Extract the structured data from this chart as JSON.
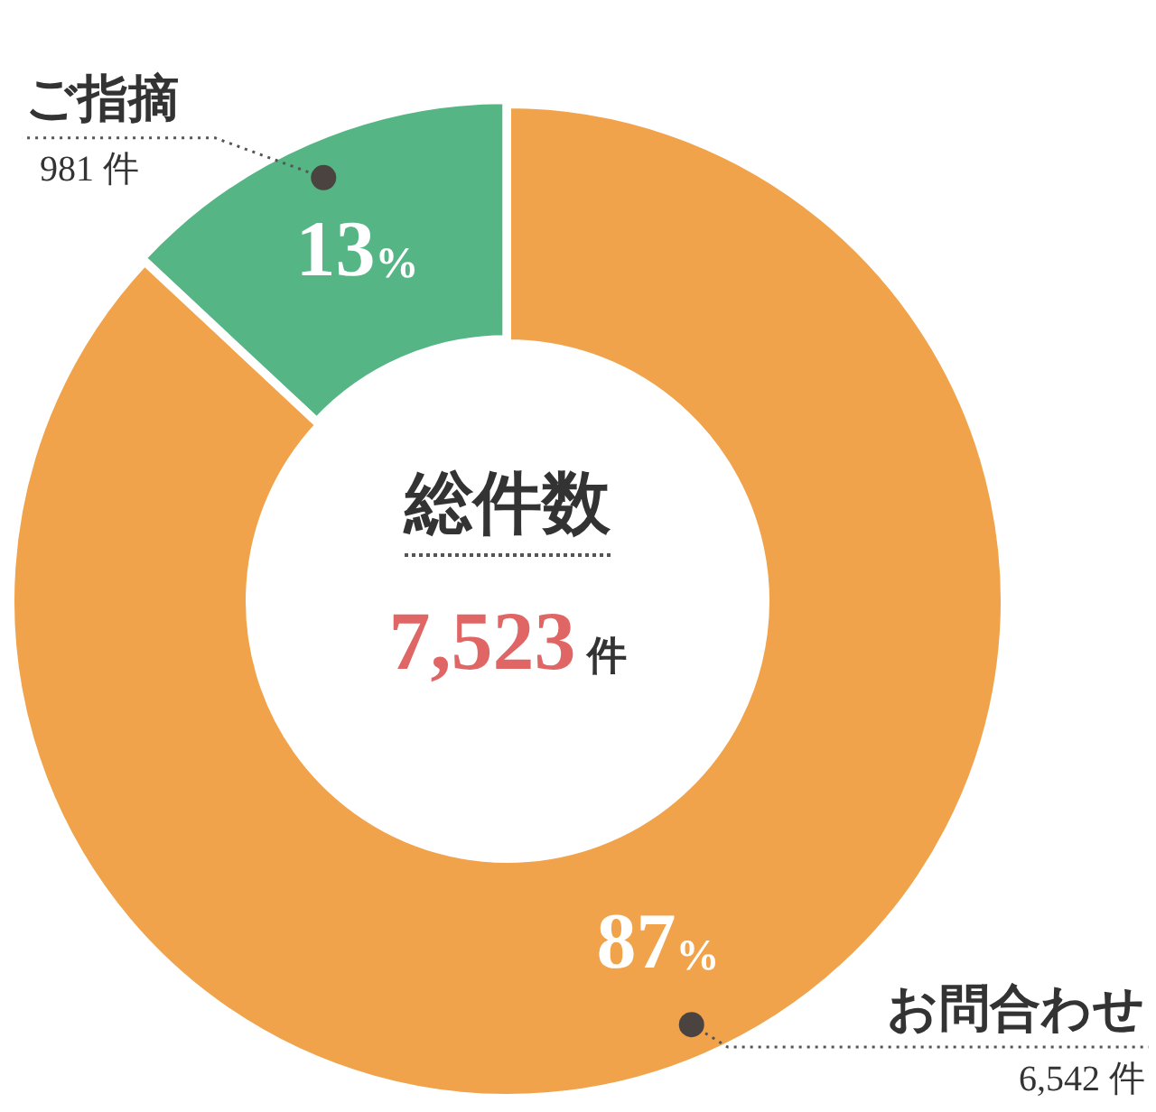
{
  "chart_data": {
    "type": "donut",
    "title": "総件数",
    "subtitle": "7,523件",
    "categories": [
      "ご指摘",
      "お問合わせ"
    ],
    "values": [
      981,
      6542
    ],
    "value_labels": [
      "981 件",
      "6,542 件"
    ],
    "colors": [
      "#55b584",
      "#f0a34a"
    ],
    "annotations": [
      "13%",
      "87%"
    ],
    "legend": false
  }
}
